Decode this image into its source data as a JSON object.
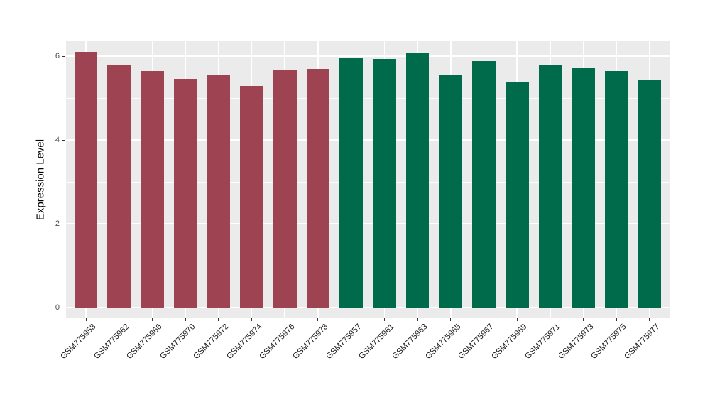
{
  "chart_data": {
    "type": "bar",
    "title": "",
    "xlabel": "",
    "ylabel": "Expression Level",
    "yticks": [
      0,
      2,
      4,
      6
    ],
    "ylim": [
      -0.25,
      6.36
    ],
    "grid": "horizontal major+minor, vertical major per category, white on gray panel",
    "legend_position": "none",
    "panel_bg": "#EBEBEB",
    "categories": [
      "GSM775958",
      "GSM775962",
      "GSM775966",
      "GSM775970",
      "GSM775972",
      "GSM775974",
      "GSM775976",
      "GSM775978",
      "GSM775957",
      "GSM775961",
      "GSM775963",
      "GSM775965",
      "GSM775967",
      "GSM775969",
      "GSM775971",
      "GSM775973",
      "GSM775975",
      "GSM775977"
    ],
    "values": [
      6.1,
      5.79,
      5.64,
      5.45,
      5.56,
      5.29,
      5.66,
      5.69,
      5.96,
      5.94,
      6.06,
      5.56,
      5.88,
      5.39,
      5.78,
      5.72,
      5.64,
      5.44
    ],
    "bar_groups": [
      "group1",
      "group1",
      "group1",
      "group1",
      "group1",
      "group1",
      "group1",
      "group1",
      "group2",
      "group2",
      "group2",
      "group2",
      "group2",
      "group2",
      "group2",
      "group2",
      "group2",
      "group2"
    ],
    "group_colors": {
      "group1": "#9E4352",
      "group2": "#006B4A"
    },
    "axis_text_color": "#4D4D4D",
    "tick_mark_color": "#333333"
  }
}
